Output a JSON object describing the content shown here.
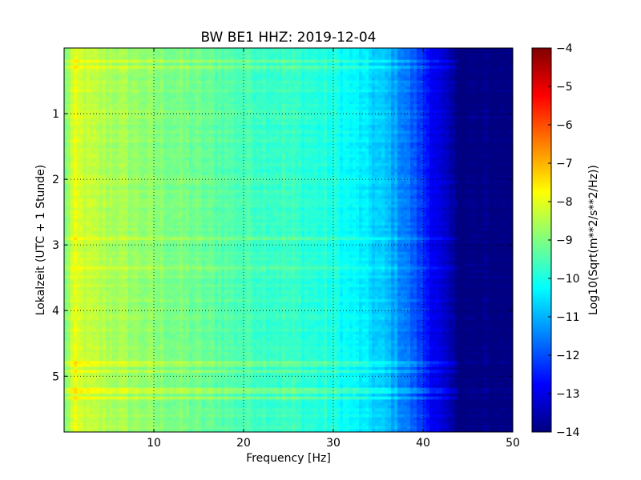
{
  "chart_data": {
    "type": "heatmap",
    "title": "BW BE1 HHZ: 2019-12-04",
    "xlabel": "Frequency [Hz]",
    "ylabel": "Lokalzeit (UTC + 1 Stunde)",
    "xlim": [
      0,
      50
    ],
    "ylim": [
      5.85,
      0
    ],
    "x_ticks": [
      10,
      20,
      30,
      40,
      50
    ],
    "y_ticks": [
      1,
      2,
      3,
      4,
      5
    ],
    "grid": true,
    "colormap": "jet",
    "colorbar": {
      "label": "Log10(Sqrt(m**2/s**2/Hz))",
      "range": [
        -14,
        -4
      ],
      "ticks": [
        -4,
        -5,
        -6,
        -7,
        -8,
        -9,
        -10,
        -11,
        -12,
        -13,
        -14
      ]
    },
    "spectral_profile": {
      "frequency_hz": [
        0,
        1,
        3,
        6,
        10,
        15,
        20,
        25,
        30,
        33,
        36,
        38,
        40,
        42,
        44,
        50
      ],
      "log10_amplitude": [
        -9.2,
        -8.1,
        -8.4,
        -8.6,
        -8.9,
        -9.2,
        -9.5,
        -9.7,
        -10.0,
        -10.4,
        -10.9,
        -11.5,
        -12.3,
        -13.2,
        -14.0,
        -14.0
      ]
    },
    "bright_bands_local_hour": [
      0.2,
      0.28,
      2.9,
      3.35,
      4.82,
      4.93,
      5.22,
      5.32
    ]
  }
}
